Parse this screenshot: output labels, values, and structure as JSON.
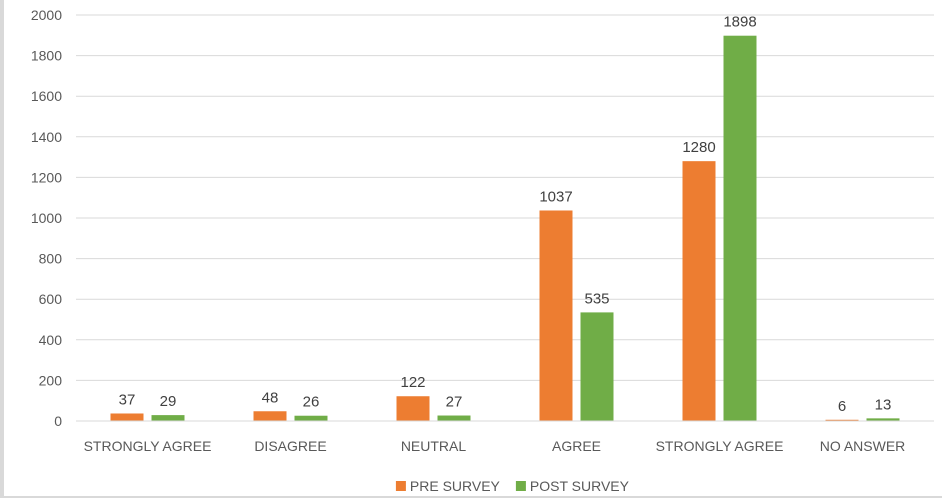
{
  "chart_data": {
    "type": "bar",
    "title": "",
    "xlabel": "",
    "ylabel": "",
    "categories": [
      "STRONGLY AGREE",
      "DISAGREE",
      "NEUTRAL",
      "AGREE",
      "STRONGLY AGREE",
      "NO ANSWER"
    ],
    "series": [
      {
        "name": "PRE SURVEY",
        "color": "#ed7d31",
        "values": [
          37,
          48,
          122,
          1037,
          1280,
          6
        ]
      },
      {
        "name": "POST SURVEY",
        "color": "#70ad47",
        "values": [
          29,
          26,
          27,
          535,
          1898,
          13
        ]
      }
    ],
    "ylim": [
      0,
      2000
    ],
    "yticks": [
      0,
      200,
      400,
      600,
      800,
      1000,
      1200,
      1400,
      1600,
      1800,
      2000
    ],
    "grid": true,
    "data_labels": true,
    "legend_position": "bottom"
  }
}
